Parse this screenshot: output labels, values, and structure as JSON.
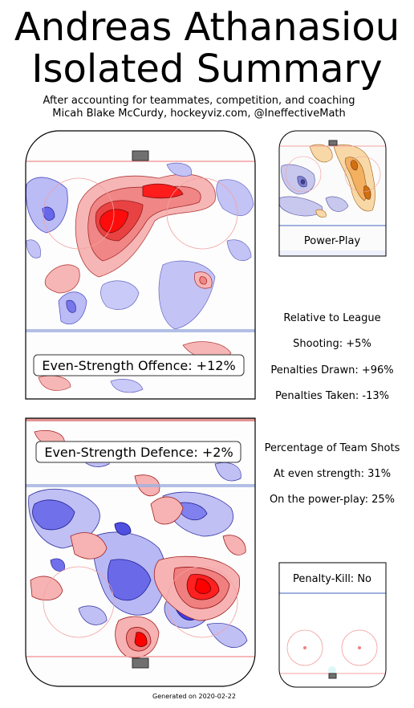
{
  "title_line1": "Andreas Athanasiou",
  "title_line2": "Isolated Summary",
  "subtitle_line1": "After accounting for teammates, competition, and coaching",
  "subtitle_line2": "Micah Blake McCurdy, hockeyviz.com, @IneffectiveMath",
  "colors": {
    "positive": "#e8191c",
    "negative": "#3333cc",
    "pp_orange": "#e89020",
    "rink_red_line": "#f4a0a0",
    "rink_blue_line": "#a0b0e0"
  },
  "panels": {
    "even_strength_offence": "Even-Strength Offence: +12%",
    "even_strength_defence": "Even-Strength Defence: +2%",
    "power_play": "Power-Play",
    "penalty_kill": "Penalty-Kill: No"
  },
  "relative_to_league": {
    "heading": "Relative to League",
    "shooting": "Shooting: +5%",
    "penalties_drawn": "Penalties Drawn: +96%",
    "penalties_taken": "Penalties Taken: -13%"
  },
  "team_shots": {
    "heading": "Percentage of Team Shots",
    "even_strength": "At even strength: 31%",
    "power_play": "On the power-play: 25%"
  },
  "footer": "Generated on 2020-02-22",
  "chart_data": {
    "type": "heatmap",
    "panels": [
      {
        "label": "Even-Strength Offence",
        "value_pct": 12
      },
      {
        "label": "Even-Strength Defence",
        "value_pct": 2
      },
      {
        "label": "Power-Play"
      },
      {
        "label": "Penalty-Kill",
        "value_text": "No"
      }
    ],
    "relative_to_league": {
      "shooting_pct": 5,
      "penalties_drawn_pct": 96,
      "penalties_taken_pct": -13
    },
    "team_shots_pct": {
      "even_strength": 31,
      "power_play": 25
    }
  }
}
